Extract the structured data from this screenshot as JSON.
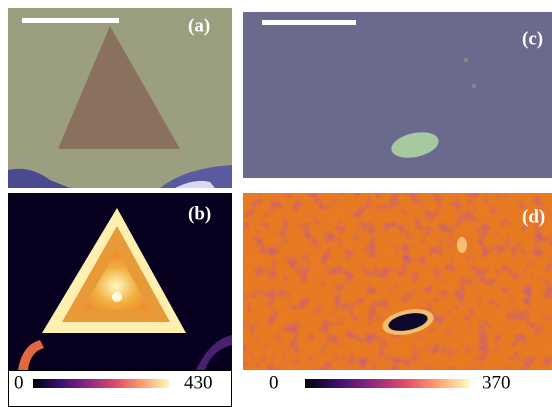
{
  "panels": [
    {
      "label": "(a)"
    },
    {
      "label": "(b)",
      "colorbar": {
        "min": 0,
        "max": 430
      }
    },
    {
      "label": "(c)"
    },
    {
      "label": "(d)",
      "colorbar": {
        "min": 0,
        "max": 370
      }
    }
  ]
}
